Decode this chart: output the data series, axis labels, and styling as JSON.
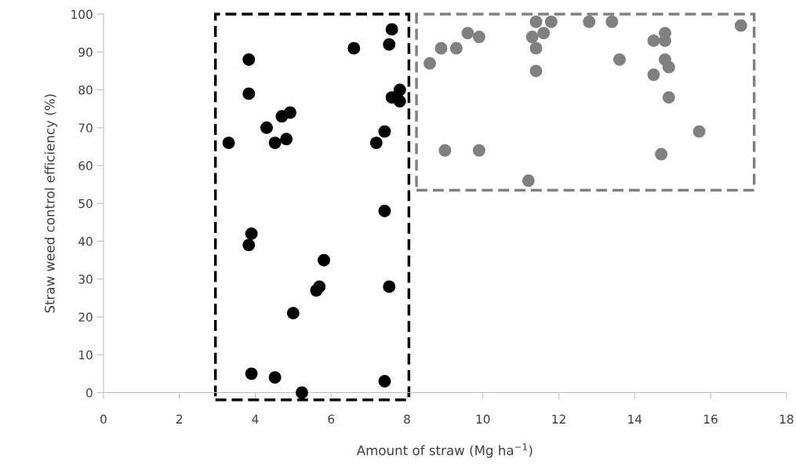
{
  "chart_data": {
    "type": "scatter",
    "xlabel": "Amount of straw (Mg ha$^{−1}$)",
    "ylabel": "Straw weed control efficiency (%)",
    "xlim": [
      0,
      18
    ],
    "xticks": [
      0,
      2,
      4,
      6,
      8,
      10,
      12,
      14,
      16,
      18
    ],
    "ylim": [
      0,
      100
    ],
    "yticks": [
      0,
      10,
      20,
      30,
      40,
      50,
      60,
      70,
      80,
      90,
      100
    ],
    "grid": false,
    "legend": false,
    "marker": "circle",
    "series": [
      {
        "color": "#000000",
        "x": [
          3.3,
          3.83,
          3.83,
          4.3,
          4.52,
          4.7,
          4.82,
          4.92,
          6.6,
          7.6,
          7.53,
          7.81,
          7.6,
          7.81,
          7.19,
          7.41,
          7.41,
          3.9,
          3.83,
          5.81,
          5.61,
          5.69,
          7.53,
          5.0,
          3.9,
          4.52,
          5.23,
          7.41
        ],
        "values": [
          66,
          88,
          79,
          70,
          66,
          73,
          67,
          74,
          91,
          96,
          92,
          80,
          78,
          77,
          66,
          69,
          48,
          42,
          39,
          35,
          27,
          28,
          28,
          21,
          5,
          4,
          0,
          3
        ]
      },
      {
        "color": "#808080",
        "x": [
          8.6,
          8.9,
          9.3,
          9.6,
          9.9,
          9.0,
          9.9,
          11.2,
          11.4,
          11.8,
          11.6,
          11.3,
          11.4,
          11.4,
          12.8,
          13.4,
          13.6,
          14.5,
          14.8,
          14.8,
          14.8,
          14.9,
          14.5,
          14.9,
          15.7,
          14.7,
          16.8
        ],
        "values": [
          87,
          91,
          91,
          95,
          94,
          64,
          64,
          56,
          98,
          98,
          95,
          94,
          91,
          85,
          98,
          98,
          88,
          93,
          95,
          93,
          88,
          86,
          84,
          78,
          69,
          63,
          97
        ]
      }
    ]
  }
}
